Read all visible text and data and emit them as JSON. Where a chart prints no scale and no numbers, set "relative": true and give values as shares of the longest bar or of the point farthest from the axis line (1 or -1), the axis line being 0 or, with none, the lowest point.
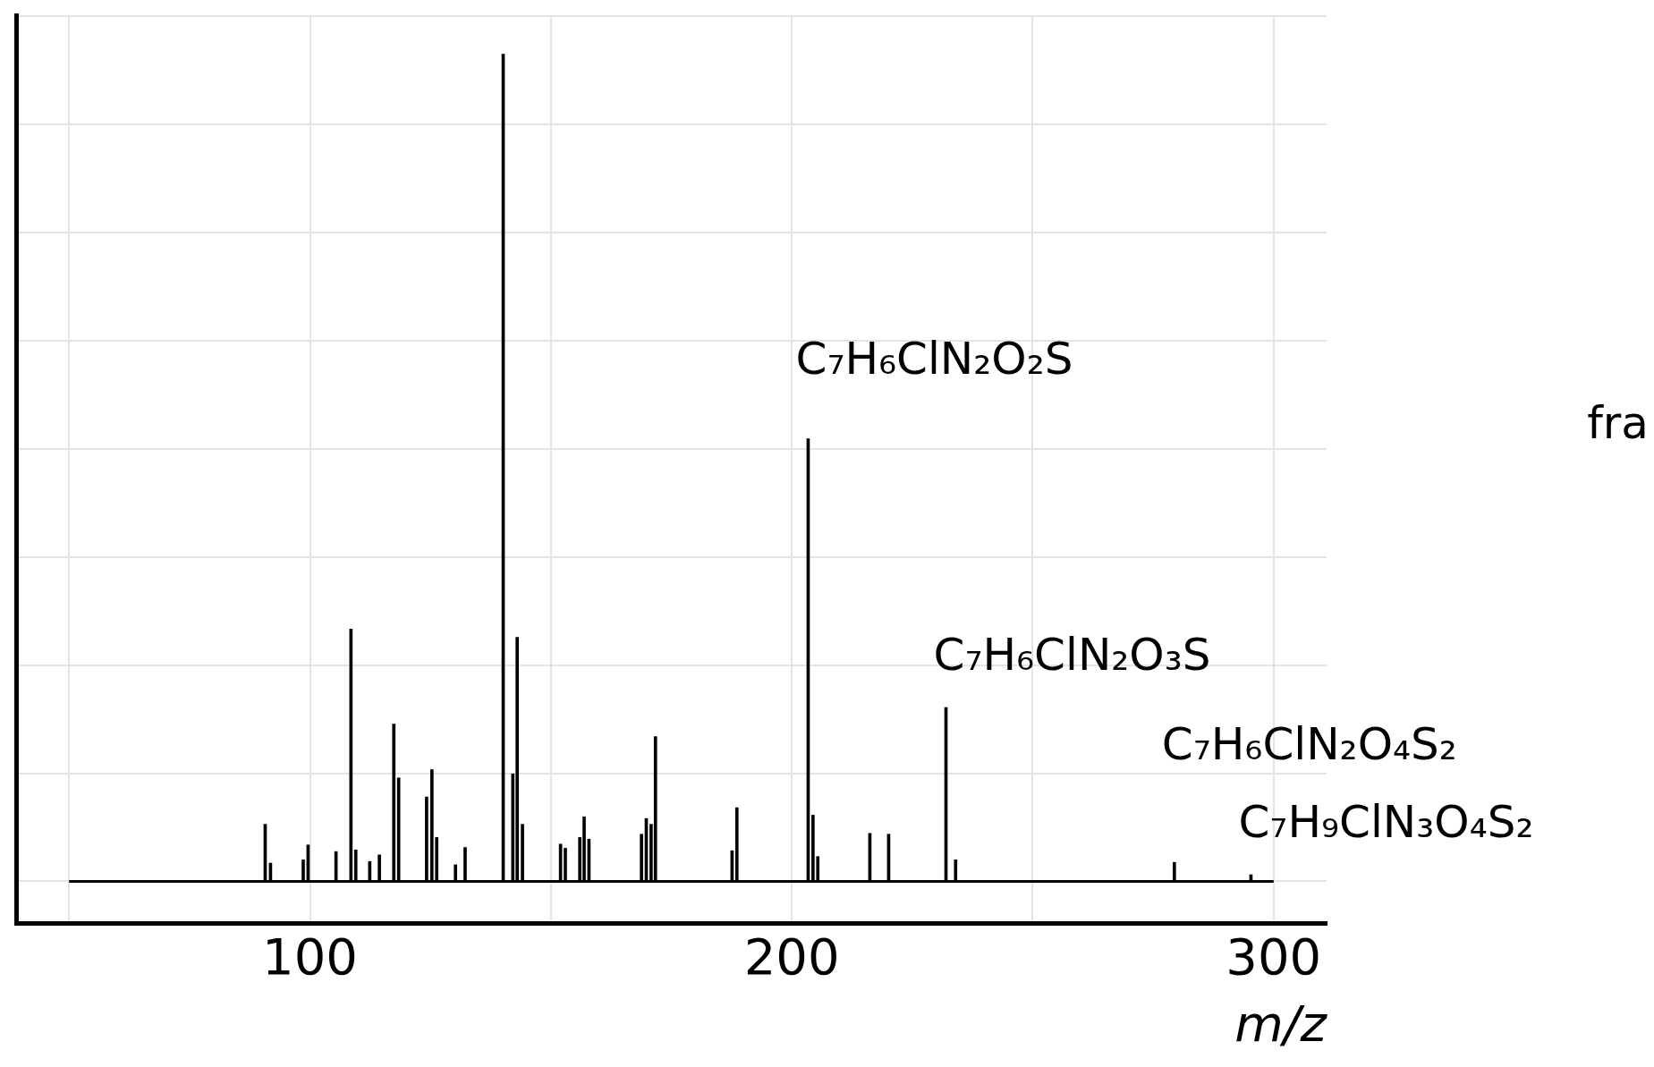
{
  "chart_data": {
    "type": "bar",
    "relative": true,
    "xlabel": "m/z",
    "x": [
      90.7,
      91.8,
      98.6,
      99.6,
      105.4,
      108.5,
      109.5,
      112.4,
      114.4,
      117.4,
      118.4,
      124.2,
      125.3,
      126.3,
      130.2,
      132.2,
      140.1,
      142.1,
      143.0,
      144.1,
      152.0,
      153.0,
      156.0,
      156.9,
      157.9,
      168.8,
      169.8,
      170.8,
      171.7,
      187.6,
      188.6,
      203.4,
      204.4,
      205.4,
      216.2,
      220.1,
      232.0,
      234.0,
      279.4,
      295.3
    ],
    "values": [
      0.069,
      0.022,
      0.026,
      0.044,
      0.036,
      0.305,
      0.038,
      0.024,
      0.032,
      0.19,
      0.125,
      0.102,
      0.135,
      0.053,
      0.02,
      0.041,
      1,
      0.13,
      0.295,
      0.069,
      0.045,
      0.04,
      0.053,
      0.078,
      0.051,
      0.057,
      0.076,
      0.069,
      0.175,
      0.037,
      0.089,
      0.535,
      0.08,
      0.03,
      0.058,
      0.057,
      0.21,
      0.026,
      0.023,
      0.008
    ],
    "color": "#000000",
    "xlim": [
      39,
      311
    ],
    "xticks": [
      {
        "value": 50,
        "label": null
      },
      100,
      {
        "value": 150,
        "label": null
      },
      200,
      {
        "value": 250,
        "label": null
      },
      300
    ],
    "ref_lines": [
      {
        "axis": "y",
        "value": 0,
        "color": "#000000"
      }
    ],
    "grid": true,
    "annotations": [
      {
        "text": "C₇H₆ClN₂O₂S",
        "x": 203.4,
        "y": 0.535
      },
      {
        "text": "C₇H₆ClN₂O₃S",
        "x": 232.0,
        "y": 0.21
      },
      {
        "text": "C₇H₆ClN₂O₄S₂",
        "x": 279.4,
        "y": 0.023
      },
      {
        "text": "C₇H₉ClN₃O₄S₂",
        "x": 295.3,
        "y": 0.008
      },
      "fra"
    ]
  }
}
